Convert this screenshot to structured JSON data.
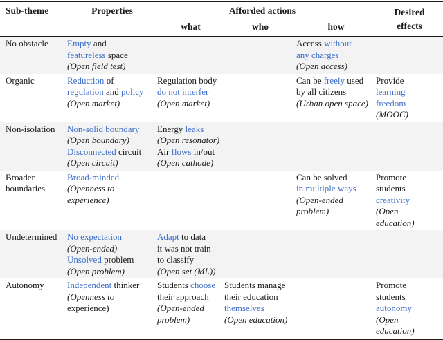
{
  "colors": {
    "accent": "#3e6fc9",
    "altbg": "#f3f3f3",
    "ink": "#1b1b1b",
    "rule": "#1b1b1b",
    "subrule": "#919191"
  },
  "header": {
    "subtheme": "Sub-theme",
    "properties": "Properties",
    "afforded_actions": "Afforded actions",
    "what": "what",
    "who": "who",
    "how": "how",
    "desired_line1": "Desired",
    "desired_line2": "effects"
  },
  "rows": [
    {
      "subtheme": [
        [
          {
            "t": "No obstacle"
          }
        ]
      ],
      "properties": [
        [
          {
            "t": "Empty",
            "c": true
          },
          {
            "t": " and"
          }
        ],
        [
          {
            "t": "featureless",
            "c": true
          },
          {
            "t": " space"
          }
        ],
        [
          {
            "t": "(Open field test)",
            "i": true
          }
        ]
      ],
      "what": [],
      "who": [],
      "how": [
        [
          {
            "t": "Access "
          },
          {
            "t": "without",
            "c": true
          }
        ],
        [
          {
            "t": "any charges",
            "c": true
          }
        ],
        [
          {
            "t": "(Open access)",
            "i": true
          }
        ]
      ],
      "effects": []
    },
    {
      "subtheme": [
        [
          {
            "t": "Organic"
          }
        ]
      ],
      "properties": [
        [
          {
            "t": "Reduction",
            "c": true
          },
          {
            "t": " of"
          }
        ],
        [
          {
            "t": "regulation",
            "c": true
          },
          {
            "t": " and "
          },
          {
            "t": "policy",
            "c": true
          }
        ],
        [
          {
            "t": "(Open market)",
            "i": true
          }
        ]
      ],
      "what": [
        [
          {
            "t": "Regulation body"
          }
        ],
        [
          {
            "t": "do not interfer",
            "c": true
          }
        ],
        [
          {
            "t": "(Open market)",
            "i": true
          }
        ]
      ],
      "who": [],
      "how": [
        [
          {
            "t": "Can be "
          },
          {
            "t": "freely",
            "c": true
          },
          {
            "t": " used"
          }
        ],
        [
          {
            "t": "by all citizens"
          }
        ],
        [
          {
            "t": "(Urban open space)",
            "i": true
          }
        ]
      ],
      "effects": [
        [
          {
            "t": "Provide"
          }
        ],
        [
          {
            "t": "learning",
            "c": true
          }
        ],
        [
          {
            "t": "freedom",
            "c": true
          }
        ],
        [
          {
            "t": "(MOOC)",
            "i": true
          }
        ]
      ]
    },
    {
      "subtheme": [
        [
          {
            "t": "Non-isolation"
          }
        ]
      ],
      "properties": [
        [
          {
            "t": "Non-solid boundary",
            "c": true
          }
        ],
        [
          {
            "t": "(Open boundary)",
            "i": true
          }
        ],
        [
          {
            "t": "Disconnected",
            "c": true
          },
          {
            "t": " circuit"
          }
        ],
        [
          {
            "t": "(Open circuit)",
            "i": true
          }
        ]
      ],
      "what": [
        [
          {
            "t": "Energy "
          },
          {
            "t": "leaks",
            "c": true
          }
        ],
        [
          {
            "t": "(Open resonator)",
            "i": true
          }
        ],
        [
          {
            "t": "Air "
          },
          {
            "t": "flows",
            "c": true
          },
          {
            "t": " in/out"
          }
        ],
        [
          {
            "t": "(Open cathode)",
            "i": true
          }
        ]
      ],
      "who": [],
      "how": [],
      "effects": []
    },
    {
      "subtheme": [
        [
          {
            "t": "Broader"
          }
        ],
        [
          {
            "t": "boundaries"
          }
        ]
      ],
      "properties": [
        [
          {
            "t": "Broad-minded",
            "c": true
          }
        ],
        [
          {
            "t": "(Openness to",
            "i": true
          }
        ],
        [
          {
            "t": "experience)",
            "i": true
          }
        ]
      ],
      "what": [],
      "who": [],
      "how": [
        [
          {
            "t": "Can be solved"
          }
        ],
        [
          {
            "t": "in multiple ways",
            "c": true
          }
        ],
        [
          {
            "t": "(Open-ended",
            "i": true
          }
        ],
        [
          {
            "t": "problem)",
            "i": true
          }
        ]
      ],
      "effects": [
        [
          {
            "t": "Promote"
          }
        ],
        [
          {
            "t": "students"
          }
        ],
        [
          {
            "t": "creativity",
            "c": true
          }
        ],
        [
          {
            "t": "(Open education)",
            "i": true
          }
        ]
      ]
    },
    {
      "subtheme": [
        [
          {
            "t": "Undetermined"
          }
        ]
      ],
      "properties": [
        [
          {
            "t": "No expectation",
            "c": true
          }
        ],
        [
          {
            "t": "(Open-ended)",
            "i": true
          }
        ],
        [
          {
            "t": "Unsolved",
            "c": true
          },
          {
            "t": " problem"
          }
        ],
        [
          {
            "t": "(Open problem)",
            "i": true
          }
        ]
      ],
      "what": [
        [
          {
            "t": "Adapt",
            "c": true
          },
          {
            "t": " to data"
          }
        ],
        [
          {
            "t": "it was not train"
          }
        ],
        [
          {
            "t": "to classify"
          }
        ],
        [
          {
            "t": "(Open set (ML))",
            "i": true
          }
        ]
      ],
      "who": [],
      "how": [],
      "effects": []
    },
    {
      "subtheme": [
        [
          {
            "t": "Autonomy"
          }
        ]
      ],
      "properties": [
        [
          {
            "t": "Independent",
            "c": true
          },
          {
            "t": " thinker"
          }
        ],
        [
          {
            "t": "(Openness to",
            "i": true
          }
        ],
        [
          {
            "t": "experience)"
          }
        ]
      ],
      "what": [
        [
          {
            "t": "Students "
          },
          {
            "t": "choose",
            "c": true
          }
        ],
        [
          {
            "t": "their approach"
          }
        ],
        [
          {
            "t": "(Open-ended",
            "i": true
          }
        ],
        [
          {
            "t": "problem)",
            "i": true
          }
        ]
      ],
      "who": [
        [
          {
            "t": "Students manage"
          }
        ],
        [
          {
            "t": "their education"
          }
        ],
        [
          {
            "t": "themselves",
            "c": true
          }
        ],
        [
          {
            "t": "(Open education)",
            "i": true
          }
        ]
      ],
      "how": [],
      "effects": [
        [
          {
            "t": "Promote"
          }
        ],
        [
          {
            "t": "students"
          }
        ],
        [
          {
            "t": "autonomy",
            "c": true
          }
        ],
        [
          {
            "t": "(Open education)",
            "i": true
          }
        ]
      ]
    }
  ]
}
